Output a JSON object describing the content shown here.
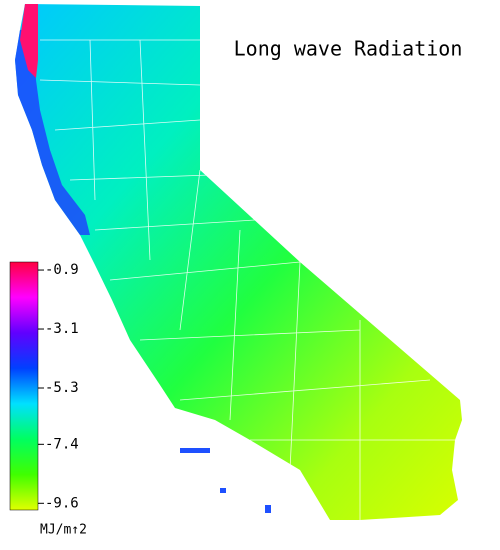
{
  "title": "Long wave Radiation",
  "colorbar": {
    "ticks": [
      -0.9,
      -3.1,
      -5.3,
      -7.4,
      -9.6
    ],
    "lim": [
      -0.6,
      -9.85
    ],
    "unit": "MJ/m↑2",
    "colors": [
      "#ff0040",
      "#ff00ff",
      "#6000ff",
      "#0040ff",
      "#00e0ff",
      "#00ff60",
      "#40ff00",
      "#e0ff00"
    ]
  }
}
